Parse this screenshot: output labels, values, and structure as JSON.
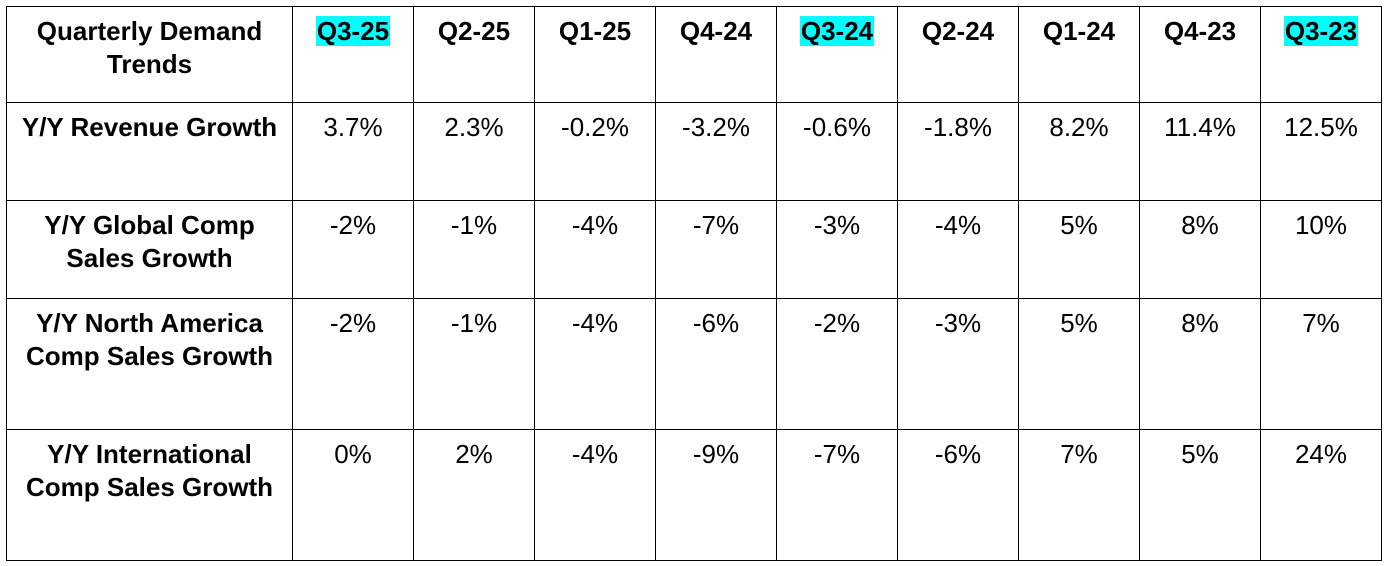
{
  "table": {
    "corner_label": "Quarterly Demand Trends",
    "columns": [
      {
        "label": "Q3-25",
        "highlight": true
      },
      {
        "label": "Q2-25",
        "highlight": false
      },
      {
        "label": "Q1-25",
        "highlight": false
      },
      {
        "label": "Q4-24",
        "highlight": false
      },
      {
        "label": "Q3-24",
        "highlight": true
      },
      {
        "label": "Q2-24",
        "highlight": false
      },
      {
        "label": "Q1-24",
        "highlight": false
      },
      {
        "label": "Q4-23",
        "highlight": false
      },
      {
        "label": "Q3-23",
        "highlight": true
      }
    ],
    "highlight_color": "#00ffff",
    "rows": [
      {
        "label": "Y/Y Revenue Growth",
        "values": [
          "3.7%",
          "2.3%",
          "-0.2%",
          "-3.2%",
          "-0.6%",
          "-1.8%",
          "8.2%",
          "11.4%",
          "12.5%"
        ]
      },
      {
        "label": "Y/Y Global Comp Sales Growth",
        "values": [
          "-2%",
          "-1%",
          "-4%",
          "-7%",
          "-3%",
          "-4%",
          "5%",
          "8%",
          "10%"
        ]
      },
      {
        "label": "Y/Y North America Comp Sales Growth",
        "values": [
          "-2%",
          "-1%",
          "-4%",
          "-6%",
          "-2%",
          "-3%",
          "5%",
          "8%",
          "7%"
        ]
      },
      {
        "label": "Y/Y International Comp Sales Growth",
        "values": [
          "0%",
          "2%",
          "-4%",
          "-9%",
          "-7%",
          "-6%",
          "7%",
          "5%",
          "24%"
        ]
      }
    ]
  }
}
